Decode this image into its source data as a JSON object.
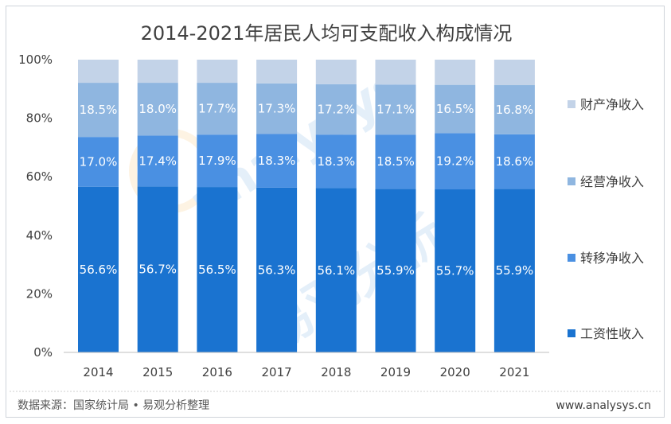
{
  "chart_data": {
    "type": "bar",
    "stacked": true,
    "title": "2014-2021年居民人均可支配收入构成情况",
    "categories": [
      "2014",
      "2015",
      "2016",
      "2017",
      "2018",
      "2019",
      "2020",
      "2021"
    ],
    "ylim": [
      0,
      100
    ],
    "yticks": [
      "0%",
      "20%",
      "40%",
      "60%",
      "80%",
      "100%"
    ],
    "series": [
      {
        "name": "工资性收入",
        "color": "#1a73d0",
        "values": [
          56.6,
          56.7,
          56.5,
          56.3,
          56.1,
          55.9,
          55.7,
          55.9
        ],
        "labels": [
          "56.6%",
          "56.7%",
          "56.5%",
          "56.3%",
          "56.1%",
          "55.9%",
          "55.7%",
          "55.9%"
        ]
      },
      {
        "name": "转移净收入",
        "color": "#4a90e2",
        "values": [
          17.0,
          17.4,
          17.9,
          18.3,
          18.3,
          18.5,
          19.2,
          18.6
        ],
        "labels": [
          "17.0%",
          "17.4%",
          "17.9%",
          "18.3%",
          "18.3%",
          "18.5%",
          "19.2%",
          "18.6%"
        ]
      },
      {
        "name": "经营净收入",
        "color": "#8fb6e0",
        "values": [
          18.5,
          18.0,
          17.7,
          17.3,
          17.2,
          17.1,
          16.5,
          16.8
        ],
        "labels": [
          "18.5%",
          "18.0%",
          "17.7%",
          "17.3%",
          "17.2%",
          "17.1%",
          "16.5%",
          "16.8%"
        ]
      },
      {
        "name": "财产净收入",
        "color": "#c3d3e8",
        "values": [
          7.9,
          7.9,
          7.9,
          8.1,
          8.4,
          8.5,
          8.6,
          8.7
        ],
        "labels": [
          "",
          "",
          "",
          "",
          "",
          "",
          "",
          ""
        ]
      }
    ],
    "grid": false,
    "legend": "right"
  },
  "footer": {
    "source": "数据来源：国家统计局 • 易观分析整理",
    "site": "www.analysys.cn"
  },
  "watermark": {
    "logo": "analysys",
    "text": "易观分析"
  }
}
